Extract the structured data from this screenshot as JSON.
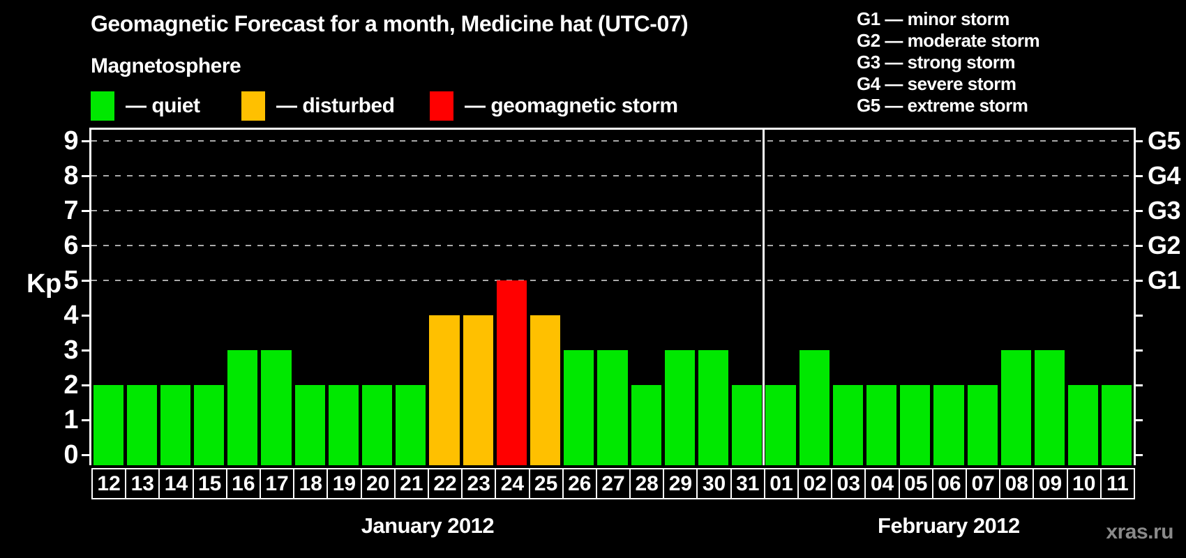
{
  "title": "Geomagnetic Forecast for a month, Medicine hat (UTC-07)",
  "subtitle": "Magnetosphere",
  "legend": {
    "items": [
      {
        "key": "quiet",
        "label": "— quiet",
        "color": "#00E800"
      },
      {
        "key": "disturbed",
        "label": "— disturbed",
        "color": "#FFC000"
      },
      {
        "key": "storm",
        "label": "— geomagnetic storm",
        "color": "#FF0000"
      }
    ]
  },
  "g_legend": {
    "lines": [
      "G1 — minor storm",
      "G2 — moderate storm",
      "G3 — strong storm",
      "G4 — severe storm",
      "G5 — extreme storm"
    ]
  },
  "watermark": "xras.ru",
  "chart_data": {
    "type": "bar",
    "title": "Geomagnetic Forecast for a month, Medicine hat (UTC-07)",
    "ylabel": "Kp",
    "ylim": [
      0,
      9.4
    ],
    "y_ticks": [
      0,
      1,
      2,
      3,
      4,
      5,
      6,
      7,
      8,
      9
    ],
    "gridlines_at": [
      5,
      6,
      7,
      8,
      9
    ],
    "grid": "dashed-horizontal-on-storm-levels",
    "legend_position": "top-left",
    "right_axis_labels": [
      {
        "label": "G1",
        "kp": 5
      },
      {
        "label": "G2",
        "kp": 6
      },
      {
        "label": "G3",
        "kp": 7
      },
      {
        "label": "G4",
        "kp": 8
      },
      {
        "label": "G5",
        "kp": 9
      }
    ],
    "colors": {
      "quiet": "#00E800",
      "disturbed": "#FFC000",
      "storm": "#FF0000"
    },
    "months": [
      {
        "label": "January 2012",
        "days": [
          {
            "day": "12",
            "kp": 2,
            "status": "quiet"
          },
          {
            "day": "13",
            "kp": 2,
            "status": "quiet"
          },
          {
            "day": "14",
            "kp": 2,
            "status": "quiet"
          },
          {
            "day": "15",
            "kp": 2,
            "status": "quiet"
          },
          {
            "day": "16",
            "kp": 3,
            "status": "quiet"
          },
          {
            "day": "17",
            "kp": 3,
            "status": "quiet"
          },
          {
            "day": "18",
            "kp": 2,
            "status": "quiet"
          },
          {
            "day": "19",
            "kp": 2,
            "status": "quiet"
          },
          {
            "day": "20",
            "kp": 2,
            "status": "quiet"
          },
          {
            "day": "21",
            "kp": 2,
            "status": "quiet"
          },
          {
            "day": "22",
            "kp": 4,
            "status": "disturbed"
          },
          {
            "day": "23",
            "kp": 4,
            "status": "disturbed"
          },
          {
            "day": "24",
            "kp": 5,
            "status": "storm"
          },
          {
            "day": "25",
            "kp": 4,
            "status": "disturbed"
          },
          {
            "day": "26",
            "kp": 3,
            "status": "quiet"
          },
          {
            "day": "27",
            "kp": 3,
            "status": "quiet"
          },
          {
            "day": "28",
            "kp": 2,
            "status": "quiet"
          },
          {
            "day": "29",
            "kp": 3,
            "status": "quiet"
          },
          {
            "day": "30",
            "kp": 3,
            "status": "quiet"
          },
          {
            "day": "31",
            "kp": 2,
            "status": "quiet"
          }
        ]
      },
      {
        "label": "February 2012",
        "days": [
          {
            "day": "01",
            "kp": 2,
            "status": "quiet"
          },
          {
            "day": "02",
            "kp": 3,
            "status": "quiet"
          },
          {
            "day": "03",
            "kp": 2,
            "status": "quiet"
          },
          {
            "day": "04",
            "kp": 2,
            "status": "quiet"
          },
          {
            "day": "05",
            "kp": 2,
            "status": "quiet"
          },
          {
            "day": "06",
            "kp": 2,
            "status": "quiet"
          },
          {
            "day": "07",
            "kp": 2,
            "status": "quiet"
          },
          {
            "day": "08",
            "kp": 3,
            "status": "quiet"
          },
          {
            "day": "09",
            "kp": 3,
            "status": "quiet"
          },
          {
            "day": "10",
            "kp": 2,
            "status": "quiet"
          },
          {
            "day": "11",
            "kp": 2,
            "status": "quiet"
          }
        ]
      }
    ]
  }
}
